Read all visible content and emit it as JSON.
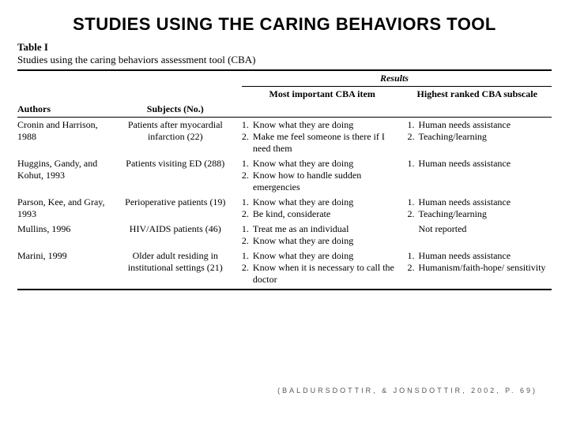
{
  "title": "STUDIES USING THE CARING BEHAVIORS TOOL",
  "table": {
    "label": "Table I",
    "caption": "Studies using the caring behaviors assessment tool (CBA)",
    "resultsHeader": "Results",
    "headers": {
      "authors": "Authors",
      "subjects": "Subjects (No.)",
      "cba": "Most important CBA item",
      "subscale": "Highest ranked CBA subscale"
    },
    "rows": [
      {
        "authors": "Cronin and Harrison, 1988",
        "subjects": "Patients after myocardial infarction (22)",
        "cba": [
          "Know what they are doing",
          "Make me feel someone is there if I need them"
        ],
        "subscale": [
          "Human needs assistance",
          "Teaching/learning"
        ]
      },
      {
        "authors": "Huggins, Gandy, and Kohut, 1993",
        "subjects": "Patients visiting ED (288)",
        "cba": [
          "Know what they are doing",
          "Know how to handle sudden emergencies"
        ],
        "subscale": [
          "Human needs assistance"
        ]
      },
      {
        "authors": "Parson, Kee, and Gray, 1993",
        "subjects": "Perioperative patients (19)",
        "cba": [
          "Know what they are doing",
          "Be kind, considerate"
        ],
        "subscale": [
          "Human needs assistance",
          "Teaching/learning"
        ]
      },
      {
        "authors": "Mullins, 1996",
        "subjects": "HIV/AIDS patients (46)",
        "cba": [
          "Treat me as an individual",
          "Know what they are doing"
        ],
        "subscale": [
          "Not reported"
        ],
        "subscaleNoNum": true
      },
      {
        "authors": "Marini, 1999",
        "subjects": "Older adult residing in institutional settings (21)",
        "cba": [
          "Know what they are doing",
          "Know when it is necessary to call the doctor"
        ],
        "subscale": [
          "Human needs assistance",
          "Humanism/faith-hope/ sensitivity"
        ]
      }
    ]
  },
  "citation": "(BALDURSDOTTIR, & JONSDOTTIR, 2002, P. 69)"
}
